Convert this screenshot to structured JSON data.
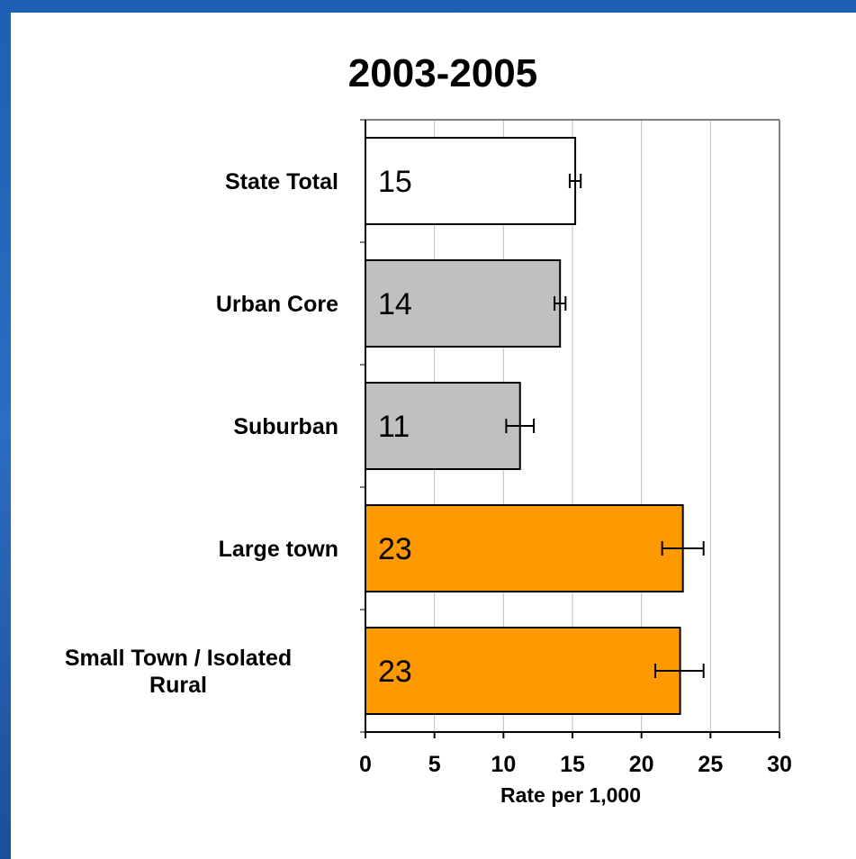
{
  "chart_data": {
    "type": "bar",
    "orientation": "horizontal",
    "title": "2003-2005",
    "xlabel": "Rate per 1,000",
    "ylabel": "",
    "xlim": [
      0,
      30
    ],
    "xticks": [
      0,
      5,
      10,
      15,
      20,
      25,
      30
    ],
    "grid": "vertical",
    "categories": [
      [
        "State Total"
      ],
      [
        "Urban Core"
      ],
      [
        "Suburban"
      ],
      [
        "Large town"
      ],
      [
        "Small Town / Isolated",
        "Rural"
      ]
    ],
    "values": [
      15.2,
      14.1,
      11.2,
      23.0,
      22.8
    ],
    "data_labels": [
      "15",
      "14",
      "11",
      "23",
      "23"
    ],
    "error_low": [
      14.8,
      13.7,
      10.2,
      21.5,
      21.0
    ],
    "error_high": [
      15.6,
      14.5,
      12.2,
      24.5,
      24.5
    ],
    "colors": [
      "#ffffff",
      "#c0c0c0",
      "#c0c0c0",
      "#ff9900",
      "#ff9900"
    ]
  },
  "colors": {
    "frame": "#2c6cc2",
    "panel": "#ffffff",
    "grid": "#bfbfbf",
    "plot_border": "#808080"
  }
}
